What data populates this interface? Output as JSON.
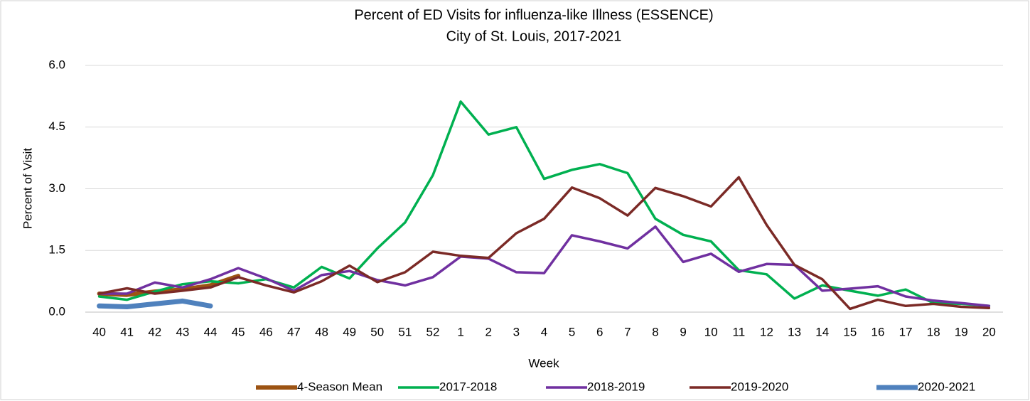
{
  "chart_data": {
    "type": "line",
    "title": "Percent of ED Visits for influenza-like Illness (ESSENCE)",
    "subtitle": "City of St. Louis, 2017-2021",
    "x_label": "Week",
    "y_label": "Percent of Visit",
    "categories": [
      "40",
      "41",
      "42",
      "43",
      "44",
      "45",
      "46",
      "47",
      "48",
      "49",
      "50",
      "51",
      "52",
      "1",
      "2",
      "3",
      "4",
      "5",
      "6",
      "7",
      "8",
      "9",
      "10",
      "11",
      "12",
      "13",
      "14",
      "15",
      "16",
      "17",
      "18",
      "19",
      "20"
    ],
    "ylim": [
      0,
      6
    ],
    "yticks": [
      {
        "value": 0,
        "label": "0.0"
      },
      1.5,
      {
        "value": 3,
        "label": "3.0"
      },
      4.5,
      {
        "value": 6,
        "label": "6.0"
      }
    ],
    "grid": true,
    "legend": "bottom",
    "series": [
      {
        "name": "4-Season Mean",
        "color": "#9c5313",
        "values": [
          0.45,
          0.42,
          0.5,
          0.55,
          0.65,
          0.88,
          null,
          null,
          null,
          null,
          null,
          null,
          null,
          null,
          null,
          null,
          null,
          null,
          null,
          null,
          null,
          null,
          null,
          null,
          null,
          null,
          null,
          null,
          null,
          null,
          null,
          null,
          null
        ]
      },
      {
        "name": "2017-2018",
        "color": "#00b050",
        "values": [
          0.38,
          0.3,
          0.5,
          0.68,
          0.75,
          0.7,
          0.8,
          0.6,
          1.1,
          0.82,
          1.55,
          2.18,
          3.33,
          5.12,
          4.32,
          4.5,
          3.24,
          3.46,
          3.6,
          3.38,
          2.27,
          1.88,
          1.72,
          1.02,
          0.92,
          0.33,
          0.65,
          0.52,
          0.4,
          0.55,
          0.22,
          0.2,
          0.15
        ]
      },
      {
        "name": "2018-2019",
        "color": "#7030a0",
        "values": [
          0.45,
          0.45,
          0.72,
          0.6,
          0.8,
          1.07,
          0.82,
          0.52,
          0.9,
          1.0,
          0.78,
          0.65,
          0.85,
          1.35,
          1.3,
          0.97,
          0.95,
          1.87,
          1.72,
          1.55,
          2.08,
          1.22,
          1.42,
          0.98,
          1.17,
          1.15,
          0.52,
          0.57,
          0.63,
          0.38,
          0.28,
          0.22,
          0.15
        ]
      },
      {
        "name": "2019-2020",
        "color": "#7b2a26",
        "values": [
          0.45,
          0.58,
          0.45,
          0.52,
          0.6,
          0.85,
          0.65,
          0.48,
          0.75,
          1.13,
          0.73,
          0.97,
          1.47,
          1.37,
          1.32,
          1.92,
          2.27,
          3.03,
          2.77,
          2.35,
          3.02,
          2.82,
          2.57,
          3.28,
          2.12,
          1.15,
          0.8,
          0.08,
          0.3,
          0.15,
          0.2,
          0.13,
          0.1
        ]
      },
      {
        "name": "2020-2021",
        "color": "#4f81bd",
        "values": [
          0.15,
          0.13,
          0.2,
          0.27,
          0.15,
          null,
          null,
          null,
          null,
          null,
          null,
          null,
          null,
          null,
          null,
          null,
          null,
          null,
          null,
          null,
          null,
          null,
          null,
          null,
          null,
          null,
          null,
          null,
          null,
          null,
          null,
          null,
          null
        ]
      }
    ]
  }
}
